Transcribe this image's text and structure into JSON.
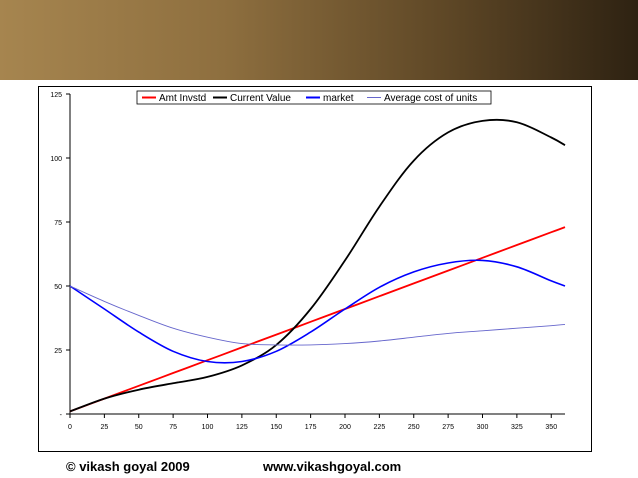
{
  "footer": {
    "copyright": "© vikash goyal 2009",
    "website": "www.vikashgoyal.com"
  },
  "chart_data": {
    "type": "line",
    "title": "",
    "xlabel": "",
    "ylabel": "",
    "xlim": [
      0,
      360
    ],
    "ylim": [
      0,
      125
    ],
    "x_ticks": [
      "0",
      "25",
      "50",
      "75",
      "100",
      "125",
      "150",
      "175",
      "200",
      "225",
      "250",
      "275",
      "300",
      "325",
      "350"
    ],
    "y_ticks": [
      "-",
      "25",
      "50",
      "75",
      "100",
      "125"
    ],
    "y_tick_values": [
      0,
      25,
      50,
      75,
      100,
      125
    ],
    "grid": false,
    "legend": "top",
    "x": [
      0,
      25,
      50,
      75,
      100,
      125,
      150,
      175,
      200,
      225,
      250,
      275,
      300,
      325,
      350,
      360
    ],
    "series": [
      {
        "name": "Amt Invstd",
        "color": "#ff0000",
        "values": [
          1,
          6,
          11,
          16,
          21,
          26,
          31,
          36,
          41,
          46,
          51,
          56,
          61,
          66,
          71,
          73
        ]
      },
      {
        "name": "Current Value",
        "color": "#000000",
        "values": [
          1,
          6,
          9.5,
          12,
          14.5,
          19,
          27,
          41,
          60,
          81,
          99,
          110,
          114.5,
          114,
          108,
          105
        ]
      },
      {
        "name": "market",
        "color": "#0000ff",
        "values": [
          50,
          41,
          32,
          24.5,
          20.5,
          20.5,
          24.5,
          32,
          41,
          49.5,
          55.5,
          59,
          60,
          57.5,
          52,
          50
        ]
      },
      {
        "name": "Average cost of units",
        "color": "#6666cc",
        "values": [
          50,
          44,
          38.5,
          33.5,
          30,
          27.5,
          27,
          27,
          27.5,
          28.5,
          30,
          31.5,
          32.5,
          33.5,
          34.5,
          35
        ]
      }
    ]
  }
}
